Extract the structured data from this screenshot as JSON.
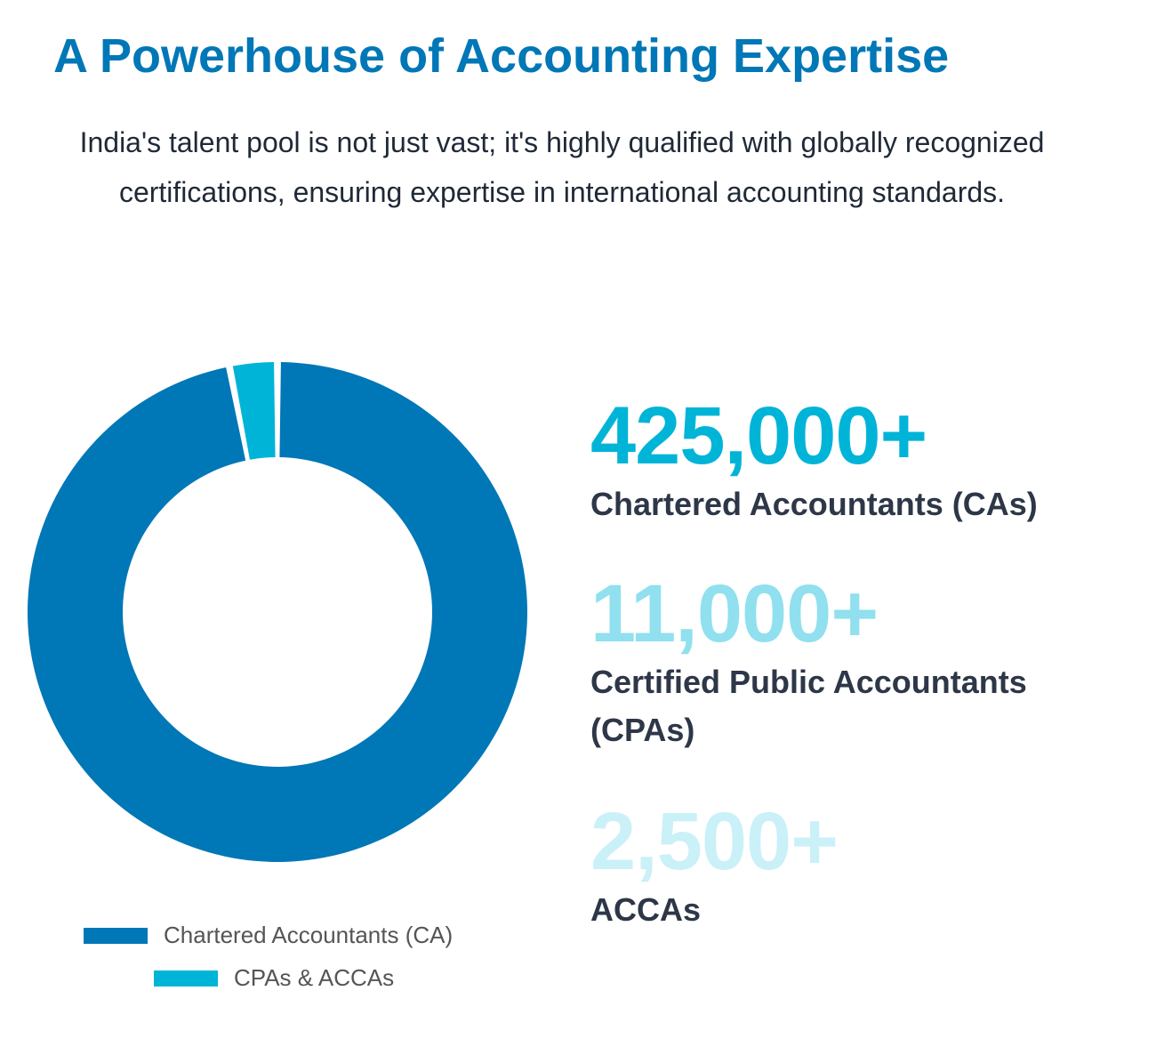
{
  "header": {
    "title": "A Powerhouse of Accounting Expertise",
    "subtitle": "India's talent pool is not just vast; it's highly qualified with globally recognized certifications, ensuring expertise in international accounting standards."
  },
  "stats": [
    {
      "value": "425,000+",
      "label": "Chartered Accountants (CAs)",
      "color": "#00b4d8"
    },
    {
      "value": "11,000+",
      "label": "Certified Public Accountants (CPAs)",
      "color": "#90e0ef"
    },
    {
      "value": "2,500+",
      "label": "ACCAs",
      "color": "#caf0f8"
    }
  ],
  "chart_data": {
    "type": "doughnut",
    "labels": [
      "Chartered Accountants (CA)",
      "CPAs & ACCAs"
    ],
    "values": [
      425000,
      13500
    ],
    "colors": [
      "#0077b6",
      "#00b4d8"
    ],
    "legend_position": "bottom"
  }
}
